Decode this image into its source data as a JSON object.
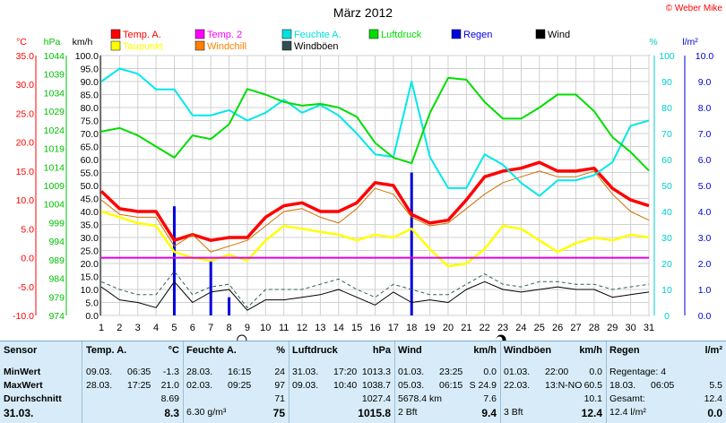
{
  "chart_data": {
    "type": "line",
    "title": "März 2012",
    "copyright": "© Weber Mike",
    "days": [
      1,
      2,
      3,
      4,
      5,
      6,
      7,
      8,
      9,
      10,
      11,
      12,
      13,
      14,
      15,
      16,
      17,
      18,
      19,
      20,
      21,
      22,
      23,
      24,
      25,
      26,
      27,
      28,
      29,
      30,
      31
    ],
    "axes": {
      "temp": {
        "label": "°C",
        "min": -10,
        "max": 35,
        "ticks": [
          "35.0",
          "30.0",
          "25.0",
          "20.0",
          "15.0",
          "10.0",
          "5.0",
          "0.0",
          "-5.0",
          "-10.0"
        ],
        "color": "#ff0000"
      },
      "pressure": {
        "label": "hPa",
        "min": 974,
        "max": 1044,
        "ticks": [
          "1044",
          "1039",
          "1034",
          "1029",
          "1024",
          "1019",
          "1014",
          "1009",
          "1004",
          "999",
          "994",
          "989",
          "984",
          "979",
          "974"
        ],
        "color": "#00c000"
      },
      "wind": {
        "label": "km/h",
        "min": 0,
        "max": 100,
        "ticks": [
          "100.0",
          "95.0",
          "90.0",
          "85.0",
          "80.0",
          "75.0",
          "70.0",
          "65.0",
          "60.0",
          "55.0",
          "50.0",
          "45.0",
          "40.0",
          "35.0",
          "30.0",
          "25.0",
          "20.0",
          "15.0",
          "10.0",
          "5.0",
          "0.0"
        ],
        "color": "#000000"
      },
      "humidity": {
        "label": "%",
        "min": 0,
        "max": 100,
        "ticks": [
          "100",
          "90",
          "80",
          "70",
          "60",
          "50",
          "40",
          "30",
          "20",
          "10",
          "0"
        ],
        "color": "#00cccc"
      },
      "rain": {
        "label": "l/m²",
        "min": 0,
        "max": 10,
        "ticks": [
          "10.0",
          "9.0",
          "8.0",
          "7.0",
          "6.0",
          "5.0",
          "4.0",
          "3.0",
          "2.0",
          "1.0",
          "0.0"
        ],
        "color": "#0000cc"
      }
    },
    "legend": [
      {
        "name": "Temp. A.",
        "color": "#ff0000"
      },
      {
        "name": "Temp. 2",
        "color": "#ff00ff"
      },
      {
        "name": "Feuchte A.",
        "color": "#00e0e0"
      },
      {
        "name": "Luftdruck",
        "color": "#00dd00"
      },
      {
        "name": "Regen",
        "color": "#0000dd"
      },
      {
        "name": "Wind",
        "color": "#000000"
      },
      {
        "name": "Taupunkt",
        "color": "#ffff00"
      },
      {
        "name": "Windchill",
        "color": "#ff8000"
      },
      {
        "name": "Windböen",
        "color": "#305050"
      }
    ],
    "series": [
      {
        "name": "Temp. A.",
        "axis": "temp",
        "color": "#ff0000",
        "width": 3.5,
        "values": [
          11.5,
          8.5,
          8.0,
          8.0,
          3.0,
          4.0,
          3.0,
          3.5,
          3.5,
          7.0,
          9.0,
          9.5,
          8.0,
          8.0,
          9.5,
          13.0,
          12.5,
          7.5,
          6.0,
          6.5,
          10.0,
          14.0,
          15.0,
          15.5,
          16.5,
          15.0,
          15.0,
          15.5,
          12.0,
          10.0,
          9.0
        ]
      },
      {
        "name": "Taupunkt",
        "axis": "temp",
        "color": "#ffff00",
        "width": 2.5,
        "values": [
          8.0,
          7.0,
          6.0,
          5.5,
          1.0,
          0.0,
          -0.5,
          0.5,
          -0.5,
          3.0,
          5.5,
          5.0,
          4.5,
          4.0,
          3.0,
          4.0,
          3.5,
          5.0,
          1.5,
          -1.5,
          -1.0,
          1.5,
          5.5,
          5.0,
          3.0,
          1.0,
          2.5,
          3.5,
          3.0,
          4.0,
          3.5
        ]
      },
      {
        "name": "Windchill",
        "axis": "temp",
        "color": "#d07000",
        "width": 1,
        "values": [
          10.0,
          7.5,
          7.0,
          7.0,
          2.0,
          4.0,
          1.0,
          2.0,
          3.0,
          5.5,
          8.0,
          8.5,
          7.0,
          6.0,
          8.5,
          12.0,
          11.0,
          7.0,
          5.5,
          6.0,
          8.5,
          11.0,
          13.0,
          14.0,
          15.0,
          14.0,
          14.0,
          15.0,
          11.0,
          8.0,
          6.5
        ]
      },
      {
        "name": "Temp. 2",
        "axis": "temp",
        "color": "#e000e0",
        "width": 2,
        "values": [
          0,
          0,
          0,
          0,
          0,
          0,
          0,
          0,
          0,
          0,
          0,
          0,
          0,
          0,
          0,
          0,
          0,
          0,
          0,
          0,
          0,
          0,
          0,
          0,
          0,
          0,
          0,
          0,
          0,
          0,
          0
        ]
      },
      {
        "name": "Feuchte A.",
        "axis": "humidity",
        "color": "#00e8e8",
        "width": 2,
        "values": [
          90,
          95,
          93,
          87,
          87,
          77,
          77,
          79,
          75,
          78,
          83,
          78,
          81,
          77,
          70,
          62,
          61,
          90,
          61,
          49,
          49,
          62,
          58,
          51,
          46,
          52,
          52,
          54,
          59,
          73,
          75
        ]
      },
      {
        "name": "Luftdruck",
        "axis": "pressure",
        "color": "#00dd00",
        "width": 2,
        "values": [
          1023.5,
          1024.5,
          1022.5,
          1019.5,
          1016.5,
          1022.5,
          1021.5,
          1025.5,
          1035.0,
          1033.5,
          1031.5,
          1030.5,
          1031.0,
          1030.0,
          1027.5,
          1020.5,
          1016.5,
          1015.0,
          1028.5,
          1038.0,
          1037.5,
          1031.5,
          1027.0,
          1027.0,
          1030.0,
          1033.5,
          1033.5,
          1029.0,
          1022.0,
          1018.0,
          1013.0
        ]
      },
      {
        "name": "Windböen",
        "axis": "wind",
        "color": "#306060",
        "width": 1,
        "dashed": true,
        "values": [
          13,
          10,
          8,
          8,
          17,
          8,
          11,
          12,
          3,
          10,
          10,
          10,
          12,
          14,
          10,
          7,
          12,
          10,
          8,
          8,
          12,
          16,
          12,
          11,
          13,
          13,
          12,
          12,
          10,
          11,
          12
        ]
      },
      {
        "name": "Wind",
        "axis": "wind",
        "color": "#000000",
        "width": 1,
        "values": [
          11,
          6,
          5,
          3,
          13,
          5,
          9,
          10,
          2,
          6,
          6,
          7,
          8,
          10,
          7,
          4,
          9,
          5,
          6,
          5,
          10,
          13,
          10,
          9,
          10,
          11,
          10,
          10,
          7,
          8,
          9
        ]
      }
    ],
    "rain": {
      "name": "Regen",
      "axis": "rain",
      "color": "#0000dd",
      "bars": [
        {
          "day": 5,
          "value": 4.2
        },
        {
          "day": 7,
          "value": 2.1
        },
        {
          "day": 8,
          "value": 0.7
        },
        {
          "day": 18,
          "value": 5.5
        }
      ]
    },
    "markers": [
      {
        "day": 8.7,
        "symbol": "full-moon-icon"
      },
      {
        "day": 22.9,
        "symbol": "moon-phase-icon"
      }
    ]
  },
  "stats": {
    "sensor": {
      "header": "Sensor",
      "rows": [
        "MinWert",
        "MaxWert",
        "Durchschnitt"
      ],
      "date": "31.03."
    },
    "temp": {
      "header": "Temp. A.",
      "unit": "°C",
      "rows": [
        {
          "a": "09.03.",
          "b": "06:35",
          "v": "-1.3"
        },
        {
          "a": "28.03.",
          "b": "17:25",
          "v": "21.0"
        },
        {
          "a": "",
          "b": "",
          "v": "8.69"
        }
      ],
      "last": {
        "a": "",
        "b": "",
        "v": "8.3"
      }
    },
    "humidity": {
      "header": "Feuchte A.",
      "unit": "%",
      "rows": [
        {
          "a": "28.03.",
          "b": "16:15",
          "v": "24"
        },
        {
          "a": "02.03.",
          "b": "09:25",
          "v": "97"
        },
        {
          "a": "",
          "b": "",
          "v": "71"
        }
      ],
      "last": {
        "a": "6.30 g/m³",
        "b": "",
        "v": "75"
      }
    },
    "pressure": {
      "header": "Luftdruck",
      "unit": "hPa",
      "rows": [
        {
          "a": "31.03.",
          "b": "17:20",
          "v": "1013.3"
        },
        {
          "a": "09.03.",
          "b": "10:40",
          "v": "1038.7"
        },
        {
          "a": "",
          "b": "",
          "v": "1027.4"
        }
      ],
      "last": {
        "a": "",
        "b": "",
        "v": "1015.8"
      }
    },
    "wind": {
      "header": "Wind",
      "unit": "km/h",
      "rows": [
        {
          "a": "01.03.",
          "b": "23:25",
          "v": "0.0"
        },
        {
          "a": "05.03.",
          "b": "06:15",
          "v": "S 24.9"
        },
        {
          "a": "5678.4 km",
          "b": "",
          "v": "7.6"
        }
      ],
      "last": {
        "a": "2 Bft",
        "b": "",
        "v": "9.4"
      }
    },
    "gusts": {
      "header": "Windböen",
      "unit": "km/h",
      "rows": [
        {
          "a": "01.03.",
          "b": "22:00",
          "v": "0.0"
        },
        {
          "a": "22.03.",
          "b": "13:N-NO",
          "v": "60.5"
        },
        {
          "a": "",
          "b": "",
          "v": "10.1"
        }
      ],
      "last": {
        "a": "3 Bft",
        "b": "",
        "v": "12.4"
      }
    },
    "rain": {
      "header": "Regen",
      "unit": "l/m²",
      "rows": [
        {
          "a": "Regentage: 4",
          "b": "",
          "v": ""
        },
        {
          "a": "18.03.",
          "b": "06:05",
          "v": "5.5"
        },
        {
          "a": "Gesamt:",
          "b": "",
          "v": "12.4"
        }
      ],
      "last": {
        "a": "12.4 l/m²",
        "b": "",
        "v": "0.0"
      }
    }
  }
}
